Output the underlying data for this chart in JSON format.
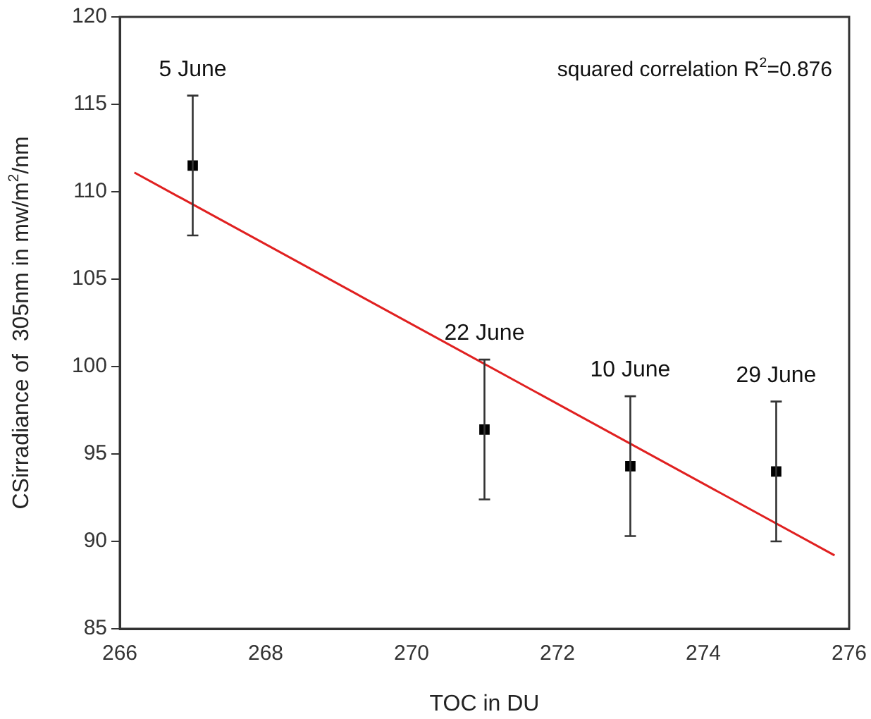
{
  "chart_data": {
    "type": "scatter",
    "xlabel": "TOC in DU",
    "ylabel": "CSirradiance of  305nm in mw/m$^{2}$/nm",
    "x": [
      267,
      271,
      273,
      275
    ],
    "marker": "square",
    "series": [
      {
        "color": "#000000",
        "values": [
          111.5,
          96.4,
          94.3,
          94.0
        ],
        "errors": [
          4,
          4,
          4,
          4
        ]
      },
      {
        "type": "line",
        "color": "#e02020",
        "x": [
          266.2,
          275.8
        ],
        "values": [
          111.1,
          89.2
        ],
        "marker": "none"
      }
    ],
    "annotations": [
      "5 June",
      "22 June",
      "10 June",
      "29 June",
      "squared correlation R$^{2}$=0.876"
    ],
    "xlim": [
      266,
      276
    ],
    "xticks": [
      266,
      268,
      270,
      272,
      274,
      276
    ],
    "ylim": [
      85,
      120
    ],
    "yticks": [
      85,
      90,
      95,
      100,
      105,
      110,
      115,
      120
    ],
    "grid": false,
    "legend": false
  }
}
